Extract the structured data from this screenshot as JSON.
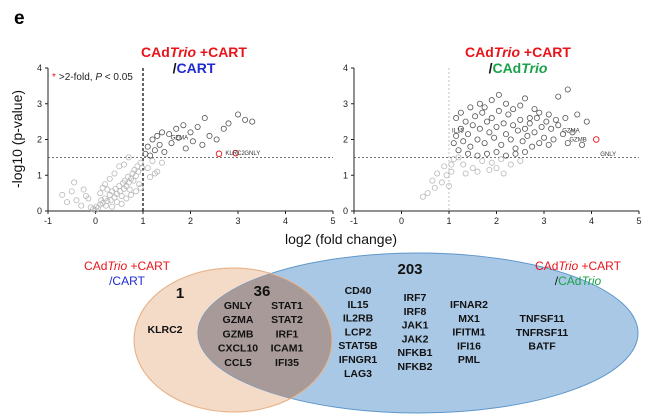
{
  "panel_label": "e",
  "colors": {
    "red": "#e8141a",
    "blue": "#1f2bd0",
    "green": "#19a24a",
    "point": "#555555",
    "point_light": "#b9b9b9",
    "venn_left": "#f4dbc8",
    "venn_right": "#a9c8e6",
    "venn_overlap": "#a89a99"
  },
  "chart_data": [
    {
      "type": "scatter",
      "plot": "volcano",
      "title_line1_prefix": "CAd",
      "title_line1_italic": "Trio",
      "title_line1_suffix": " +CART",
      "title_line2_slash": "/",
      "title_line2_name": "CART",
      "legend_marker": "*",
      "legend_text_a": ">2-fold, ",
      "legend_text_p": "P",
      "legend_text_b": " < 0.05",
      "xlim": [
        -1,
        5
      ],
      "ylim": [
        0,
        4
      ],
      "xticks": [
        "-1",
        "0",
        "1",
        "2",
        "3",
        "4",
        "5"
      ],
      "yticks": [
        "0",
        "1",
        "2",
        "3",
        "4"
      ],
      "xline": 1,
      "xline_style": "dashed-bold",
      "yline": 1.5,
      "annotations": [
        {
          "label": "GZMA",
          "x": 1.5,
          "y": 2.05
        },
        {
          "label": "KLRC2",
          "x": 2.65,
          "y": 1.62
        },
        {
          "label": "GNLY",
          "x": 3.05,
          "y": 1.62
        }
      ],
      "highlight_points": [
        [
          2.6,
          1.6
        ],
        [
          2.95,
          1.62
        ]
      ],
      "points": [
        [
          -0.7,
          0.45
        ],
        [
          -0.6,
          0.25
        ],
        [
          -0.5,
          0.55
        ],
        [
          -0.4,
          0.3
        ],
        [
          -0.3,
          0.15
        ],
        [
          -0.2,
          0.42
        ],
        [
          -0.1,
          0.1
        ],
        [
          -0.05,
          0.05
        ],
        [
          0.0,
          0.02
        ],
        [
          0.02,
          0.12
        ],
        [
          0.05,
          0.08
        ],
        [
          0.1,
          0.18
        ],
        [
          0.12,
          0.3
        ],
        [
          0.15,
          0.22
        ],
        [
          0.2,
          0.35
        ],
        [
          0.22,
          0.15
        ],
        [
          0.25,
          0.28
        ],
        [
          0.3,
          0.45
        ],
        [
          0.32,
          0.3
        ],
        [
          0.35,
          0.55
        ],
        [
          0.4,
          0.38
        ],
        [
          0.42,
          0.62
        ],
        [
          0.45,
          0.48
        ],
        [
          0.5,
          0.7
        ],
        [
          0.52,
          0.55
        ],
        [
          0.55,
          0.42
        ],
        [
          0.58,
          0.78
        ],
        [
          0.6,
          0.62
        ],
        [
          0.62,
          0.85
        ],
        [
          0.65,
          0.7
        ],
        [
          0.68,
          0.95
        ],
        [
          0.7,
          0.8
        ],
        [
          0.72,
          0.6
        ],
        [
          0.75,
          0.9
        ],
        [
          0.78,
          1.05
        ],
        [
          0.8,
          0.85
        ],
        [
          0.82,
          1.15
        ],
        [
          0.85,
          0.98
        ],
        [
          0.88,
          1.25
        ],
        [
          0.9,
          1.1
        ],
        [
          0.92,
          0.75
        ],
        [
          0.95,
          1.35
        ],
        [
          0.98,
          1.2
        ],
        [
          0.6,
          1.3
        ],
        [
          0.7,
          1.5
        ],
        [
          0.5,
          1.25
        ],
        [
          0.4,
          1.05
        ],
        [
          0.3,
          0.9
        ],
        [
          0.2,
          0.75
        ],
        [
          0.1,
          0.5
        ],
        [
          -0.15,
          0.35
        ],
        [
          0.35,
          0.12
        ],
        [
          0.45,
          0.25
        ],
        [
          0.55,
          0.2
        ],
        [
          0.65,
          0.35
        ],
        [
          0.75,
          0.45
        ],
        [
          0.85,
          0.55
        ],
        [
          0.95,
          0.65
        ],
        [
          0.25,
          0.6
        ],
        [
          0.15,
          0.65
        ],
        [
          -0.25,
          0.6
        ],
        [
          -0.45,
          0.8
        ],
        [
          1.05,
          1.6
        ],
        [
          1.1,
          1.8
        ],
        [
          1.15,
          1.55
        ],
        [
          1.2,
          2.0
        ],
        [
          1.25,
          1.7
        ],
        [
          1.3,
          2.1
        ],
        [
          1.35,
          1.85
        ],
        [
          1.4,
          2.2
        ],
        [
          1.45,
          1.65
        ],
        [
          1.55,
          2.15
        ],
        [
          1.6,
          1.9
        ],
        [
          1.7,
          2.3
        ],
        [
          1.75,
          2.05
        ],
        [
          1.85,
          2.4
        ],
        [
          1.9,
          1.75
        ],
        [
          2.0,
          2.2
        ],
        [
          2.05,
          1.95
        ],
        [
          2.15,
          2.35
        ],
        [
          2.25,
          1.85
        ],
        [
          2.3,
          2.6
        ],
        [
          2.4,
          2.1
        ],
        [
          2.55,
          2.0
        ],
        [
          2.7,
          2.3
        ],
        [
          2.8,
          2.45
        ],
        [
          3.0,
          2.7
        ],
        [
          3.15,
          2.55
        ],
        [
          3.3,
          2.5
        ],
        [
          1.1,
          1.2
        ],
        [
          1.2,
          1.4
        ],
        [
          1.3,
          1.1
        ],
        [
          1.4,
          1.35
        ],
        [
          1.15,
          0.95
        ],
        [
          1.25,
          1.05
        ]
      ]
    },
    {
      "type": "scatter",
      "plot": "volcano",
      "title_line1_prefix": "CAd",
      "title_line1_italic": "Trio",
      "title_line1_suffix": " +CART",
      "title_line2_slash": "/",
      "title_line2_name_prefix": "CAd",
      "title_line2_name_italic": "Trio",
      "xlim": [
        -1,
        5
      ],
      "ylim": [
        0,
        4
      ],
      "xticks": [
        "-1",
        "0",
        "1",
        "2",
        "3",
        "4",
        "5"
      ],
      "yticks": [
        "0",
        "1",
        "2",
        "3",
        "4"
      ],
      "xline": 1.0,
      "xline_style": "dashed-light",
      "yline": 1.5,
      "annotations": [
        {
          "label": "IL15",
          "x": 0.98,
          "y": 2.25
        },
        {
          "label": "GZMA",
          "x": 3.3,
          "y": 2.25
        },
        {
          "label": "GZMB",
          "x": 3.45,
          "y": 2.0
        },
        {
          "label": "GNLY",
          "x": 4.1,
          "y": 1.6
        }
      ],
      "highlight_points": [
        [
          4.1,
          2.0
        ]
      ],
      "points": [
        [
          0.55,
          0.5
        ],
        [
          0.7,
          0.65
        ],
        [
          0.85,
          0.8
        ],
        [
          0.95,
          1.0
        ],
        [
          1.0,
          0.7
        ],
        [
          1.05,
          1.1
        ],
        [
          1.1,
          1.9
        ],
        [
          1.15,
          2.1
        ],
        [
          1.2,
          1.7
        ],
        [
          1.25,
          2.3
        ],
        [
          1.3,
          1.95
        ],
        [
          1.35,
          2.5
        ],
        [
          1.4,
          2.15
        ],
        [
          1.45,
          1.8
        ],
        [
          1.5,
          2.4
        ],
        [
          1.55,
          2.65
        ],
        [
          1.6,
          2.0
        ],
        [
          1.65,
          2.3
        ],
        [
          1.7,
          2.75
        ],
        [
          1.75,
          1.9
        ],
        [
          1.8,
          2.5
        ],
        [
          1.85,
          2.2
        ],
        [
          1.9,
          2.6
        ],
        [
          1.95,
          2.05
        ],
        [
          2.0,
          2.35
        ],
        [
          2.05,
          2.8
        ],
        [
          2.1,
          1.85
        ],
        [
          2.15,
          2.45
        ],
        [
          2.2,
          2.15
        ],
        [
          2.25,
          2.7
        ],
        [
          2.3,
          2.0
        ],
        [
          2.35,
          2.4
        ],
        [
          2.4,
          1.75
        ],
        [
          2.45,
          2.25
        ],
        [
          2.5,
          2.55
        ],
        [
          2.55,
          1.95
        ],
        [
          2.6,
          2.3
        ],
        [
          2.65,
          2.1
        ],
        [
          2.7,
          2.45
        ],
        [
          2.75,
          1.8
        ],
        [
          2.8,
          2.2
        ],
        [
          2.85,
          2.6
        ],
        [
          2.9,
          1.9
        ],
        [
          2.95,
          2.35
        ],
        [
          3.0,
          2.05
        ],
        [
          3.05,
          2.5
        ],
        [
          3.1,
          1.85
        ],
        [
          3.15,
          2.3
        ],
        [
          3.2,
          2.0
        ],
        [
          3.3,
          2.4
        ],
        [
          3.4,
          2.15
        ],
        [
          3.5,
          1.9
        ],
        [
          3.6,
          2.2
        ],
        [
          3.8,
          1.85
        ],
        [
          1.6,
          1.55
        ],
        [
          1.8,
          1.6
        ],
        [
          2.0,
          1.65
        ],
        [
          2.2,
          1.55
        ],
        [
          2.4,
          1.6
        ],
        [
          2.6,
          1.65
        ],
        [
          1.4,
          1.6
        ],
        [
          1.2,
          1.5
        ],
        [
          1.3,
          1.3
        ],
        [
          1.1,
          1.45
        ],
        [
          0.9,
          1.25
        ],
        [
          0.75,
          1.05
        ],
        [
          1.7,
          1.4
        ],
        [
          1.9,
          1.35
        ],
        [
          2.1,
          1.45
        ],
        [
          2.3,
          1.3
        ],
        [
          2.5,
          1.4
        ],
        [
          1.5,
          1.2
        ],
        [
          1.65,
          3.0
        ],
        [
          1.9,
          3.1
        ],
        [
          2.2,
          3.0
        ],
        [
          2.5,
          2.95
        ],
        [
          2.8,
          2.85
        ],
        [
          3.3,
          3.2
        ],
        [
          3.5,
          3.4
        ],
        [
          1.45,
          2.9
        ],
        [
          2.05,
          3.25
        ],
        [
          2.6,
          3.15
        ],
        [
          1.15,
          2.6
        ],
        [
          1.25,
          2.75
        ],
        [
          1.05,
          1.3
        ],
        [
          3.9,
          2.5
        ],
        [
          3.7,
          2.7
        ],
        [
          0.65,
          0.85
        ],
        [
          0.45,
          0.4
        ],
        [
          1.35,
          1.05
        ],
        [
          1.6,
          1.1
        ],
        [
          1.85,
          1.15
        ],
        [
          2.0,
          1.2
        ],
        [
          2.15,
          1.05
        ],
        [
          1.75,
          2.9
        ],
        [
          2.35,
          2.85
        ],
        [
          2.7,
          2.6
        ],
        [
          2.9,
          2.75
        ],
        [
          3.1,
          2.7
        ],
        [
          3.25,
          2.55
        ],
        [
          3.45,
          2.6
        ]
      ]
    },
    {
      "type": "table",
      "plot": "venn",
      "left_label_prefix": "CAd",
      "left_label_italic": "Trio",
      "left_label_suffix": " +CART",
      "left_label_line2": "/CART",
      "right_label_prefix": "CAd",
      "right_label_italic": "Trio",
      "right_label_suffix": " +CART",
      "right_label_line2_slash": "/",
      "right_label_line2_prefix": "CAd",
      "right_label_line2_italic": "Trio",
      "left_only_count": "1",
      "overlap_count": "36",
      "right_only_count": "203",
      "left_only_genes": [
        "KLRC2"
      ],
      "overlap_genes_col1": [
        "GNLY",
        "GZMA",
        "GZMB",
        "CXCL10",
        "CCL5"
      ],
      "overlap_genes_col2": [
        "STAT1",
        "STAT2",
        "IRF1",
        "ICAM1",
        "IFI35"
      ],
      "right_genes_col1": [
        "CD40",
        "IL15",
        "IL2RB",
        "LCP2",
        "STAT5B",
        "IFNGR1",
        "LAG3"
      ],
      "right_genes_col2": [
        "IRF7",
        "IRF8",
        "JAK1",
        "JAK2",
        "NFKB1",
        "NFKB2"
      ],
      "right_genes_col3": [
        "IFNAR2",
        "MX1",
        "IFITM1",
        "IFI16",
        "PML"
      ],
      "right_genes_col4": [
        "TNFSF11",
        "TNFRSF11",
        "BATF"
      ]
    }
  ],
  "shared_xlabel": "log2 (fold change)",
  "shared_ylabel": "-log10 (p-value)"
}
